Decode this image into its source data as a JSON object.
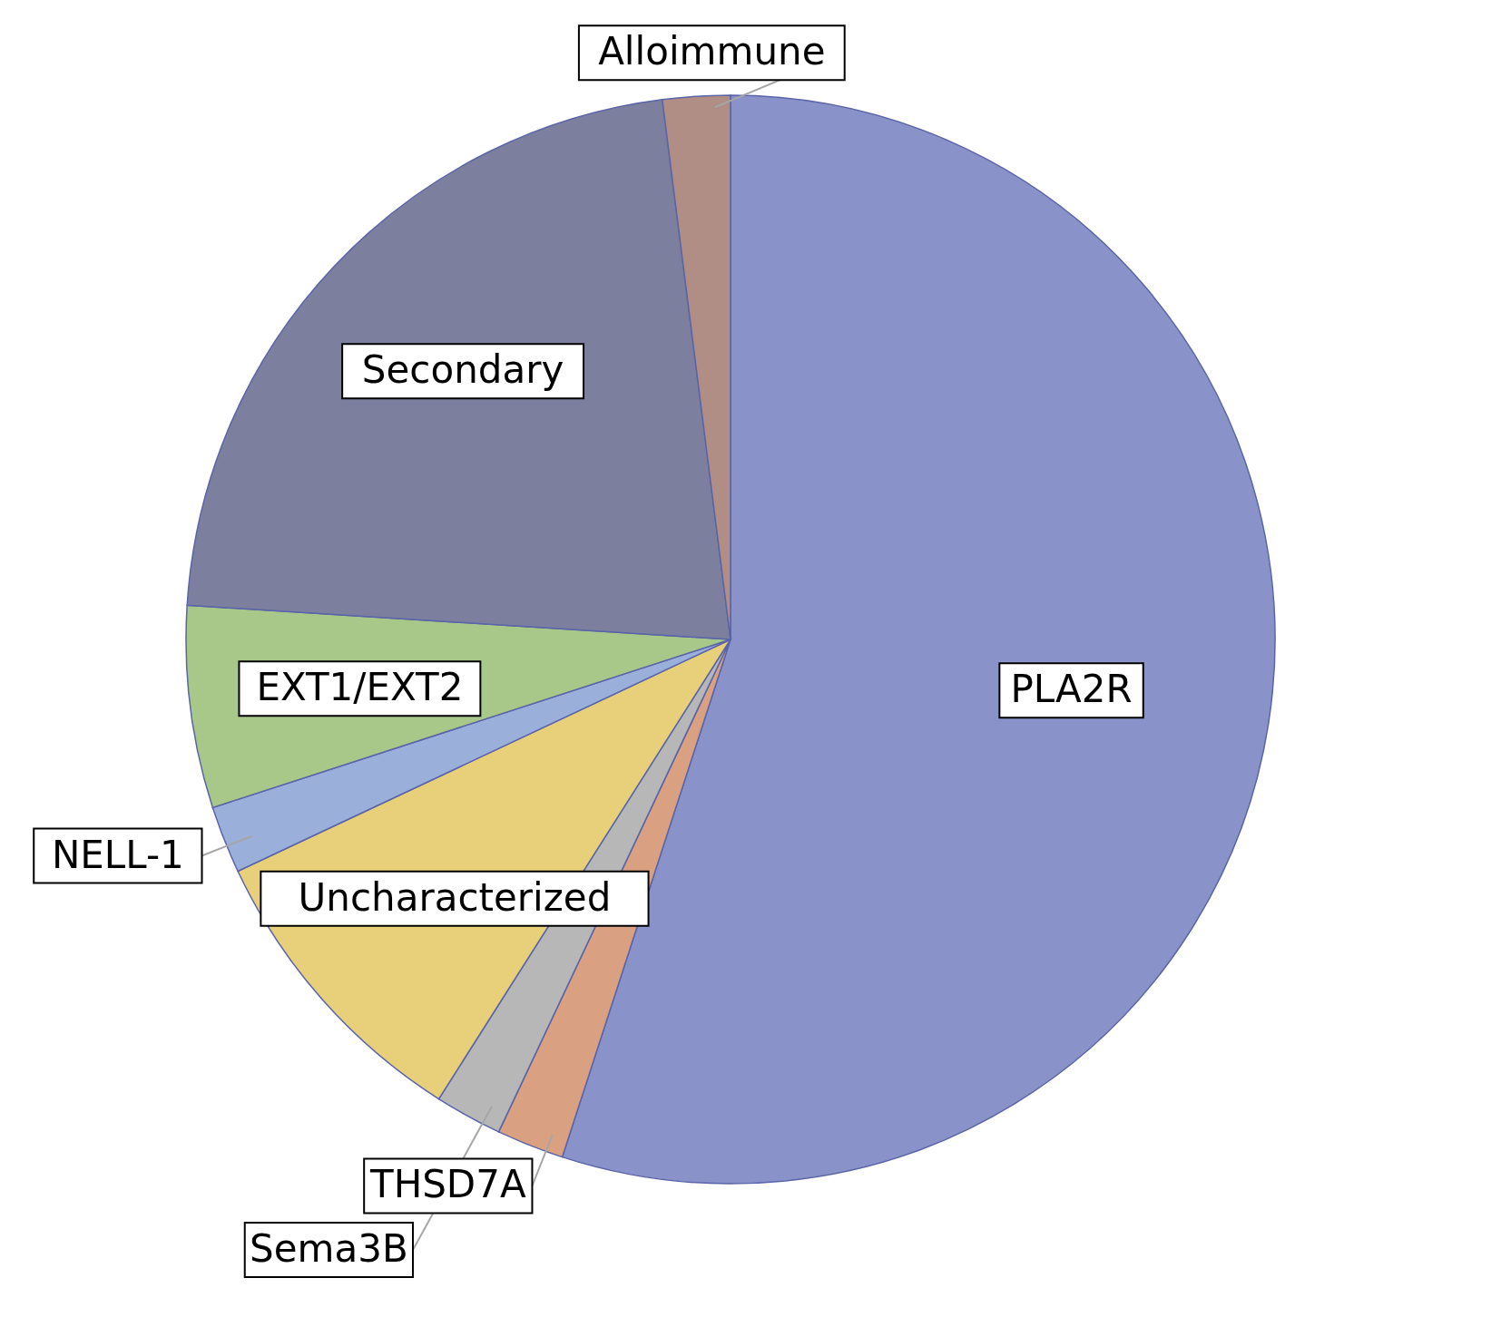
{
  "chart_data": {
    "type": "pie",
    "categories": [
      "PLA2R",
      "THSD7A",
      "Sema3B",
      "Uncharacterized",
      "NELL-1",
      "EXT1/EXT2",
      "Secondary",
      "Alloimmune"
    ],
    "values": [
      55,
      2,
      2,
      9,
      2,
      6,
      22,
      2
    ],
    "colors": [
      "#8a93c9",
      "#d9a082",
      "#b7b7b7",
      "#e8cf7a",
      "#9bafdb",
      "#a8c88a",
      "#7c809e",
      "#b08e86"
    ],
    "legend": false
  }
}
